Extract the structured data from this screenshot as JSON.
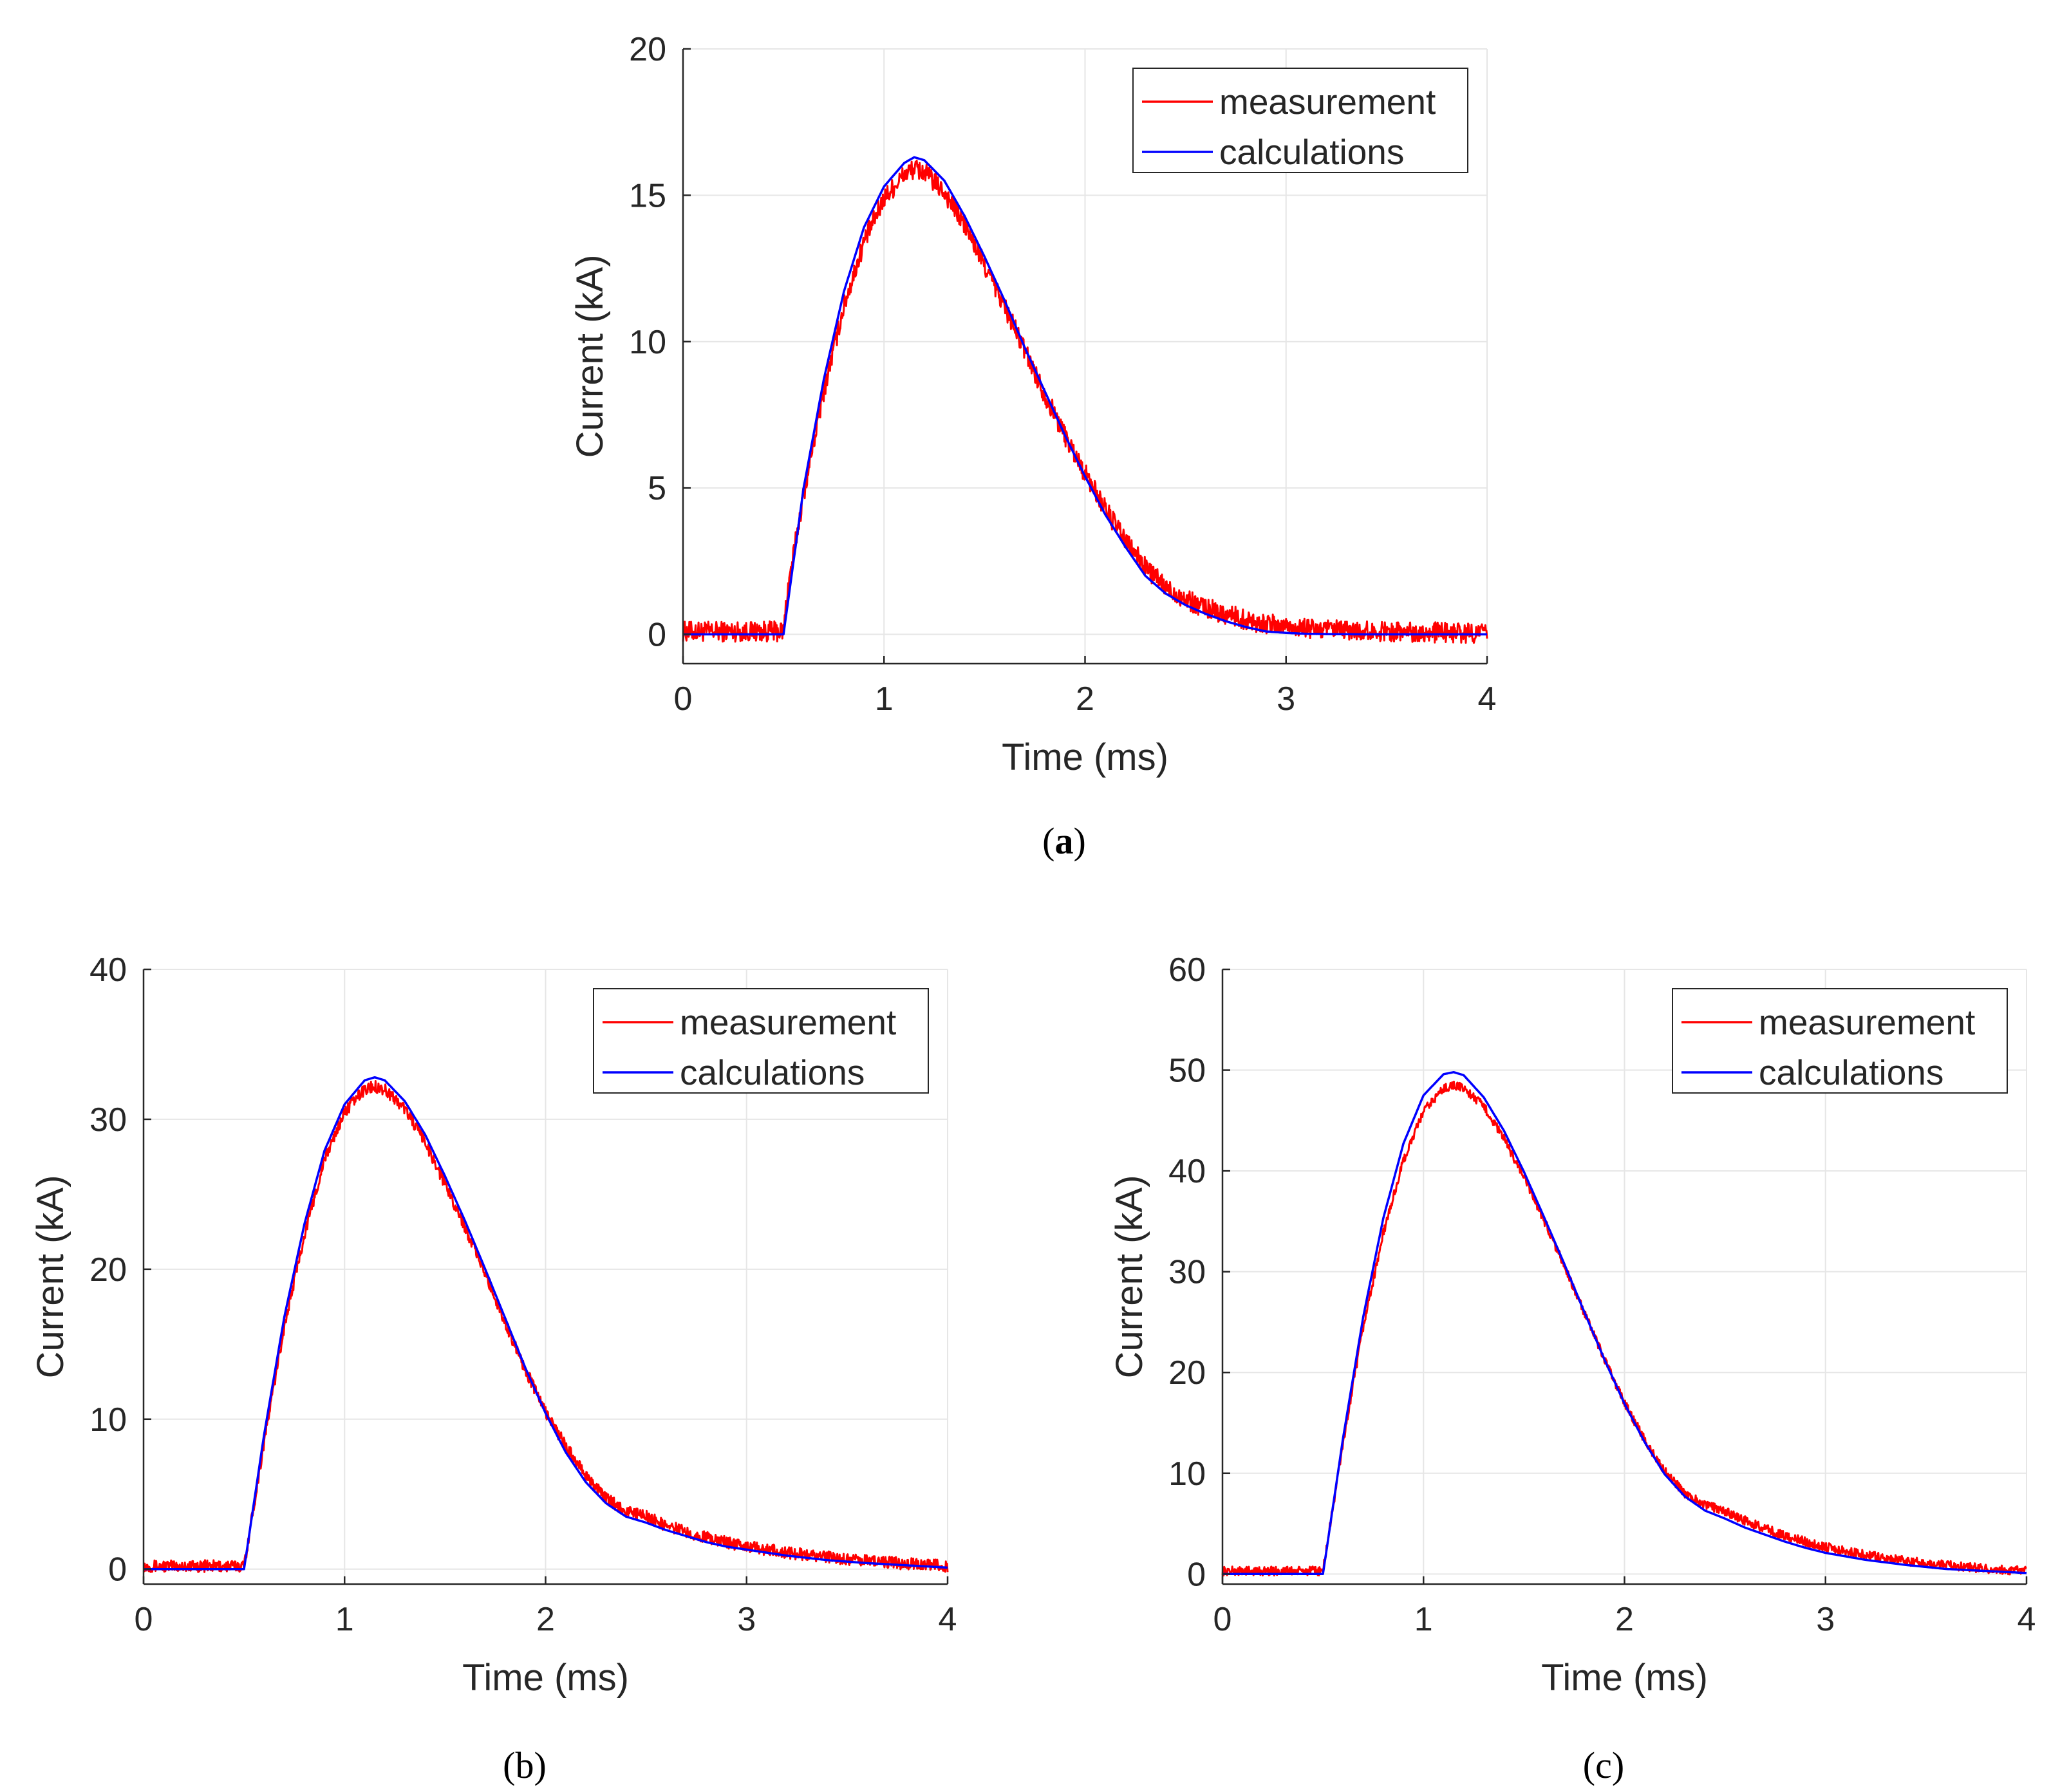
{
  "colors": {
    "measurement": "#ff0000",
    "calculations": "#0000ff",
    "axis": "#262626",
    "grid": "#e6e6e6"
  },
  "chart_data": [
    {
      "id": "a",
      "type": "line",
      "caption_prefix": "(",
      "caption_letter": "a",
      "caption_suffix": ")",
      "xlabel": "Time (ms)",
      "ylabel": "Current (kA)",
      "xlim": [
        0,
        4
      ],
      "ylim": [
        -1,
        20
      ],
      "xticks": [
        0,
        1,
        2,
        3,
        4
      ],
      "yticks": [
        0,
        5,
        10,
        15,
        20
      ],
      "grid": true,
      "legend_position": "top-right",
      "noise_amplitude": 0.35,
      "series": [
        {
          "name": "measurement",
          "color": "#ff0000",
          "x": [
            0,
            0.5,
            0.52,
            0.6,
            0.7,
            0.8,
            0.9,
            1.0,
            1.1,
            1.15,
            1.2,
            1.3,
            1.4,
            1.5,
            1.6,
            1.7,
            1.8,
            1.9,
            2.0,
            2.1,
            2.2,
            2.3,
            2.4,
            2.5,
            2.6,
            2.7,
            2.8,
            2.9,
            3.0,
            3.1,
            3.2,
            3.4,
            3.6,
            3.8,
            4.0
          ],
          "y": [
            0.1,
            0.1,
            1.5,
            4.8,
            8.3,
            11.2,
            13.4,
            14.9,
            15.7,
            15.9,
            15.8,
            15.1,
            14.0,
            12.6,
            11.2,
            9.7,
            8.2,
            6.8,
            5.5,
            4.3,
            3.2,
            2.3,
            1.6,
            1.2,
            0.9,
            0.7,
            0.5,
            0.35,
            0.3,
            0.2,
            0.15,
            0.1,
            0.1,
            0.05,
            0.05
          ]
        },
        {
          "name": "calculations",
          "color": "#0000ff",
          "x": [
            0,
            0.5,
            0.6,
            0.7,
            0.8,
            0.9,
            1.0,
            1.1,
            1.15,
            1.2,
            1.3,
            1.4,
            1.5,
            1.6,
            1.7,
            1.8,
            1.9,
            2.0,
            2.1,
            2.2,
            2.3,
            2.4,
            2.5,
            2.6,
            2.7,
            2.8,
            2.9,
            3.0,
            3.1,
            3.2,
            3.4,
            3.6,
            3.8,
            4.0
          ],
          "y": [
            0,
            0,
            5.0,
            8.7,
            11.7,
            13.9,
            15.3,
            16.1,
            16.3,
            16.2,
            15.5,
            14.3,
            12.9,
            11.4,
            9.8,
            8.3,
            6.8,
            5.4,
            4.1,
            3.0,
            2.0,
            1.4,
            1.0,
            0.7,
            0.45,
            0.25,
            0.1,
            0.05,
            0.02,
            0.01,
            0,
            0,
            0,
            0
          ]
        }
      ]
    },
    {
      "id": "b",
      "type": "line",
      "caption_prefix": "(",
      "caption_letter": "b",
      "caption_suffix": ")",
      "xlabel": "Time (ms)",
      "ylabel": "Current (kA)",
      "xlim": [
        0,
        4
      ],
      "ylim": [
        -1,
        40
      ],
      "xticks": [
        0,
        1,
        2,
        3,
        4
      ],
      "yticks": [
        0,
        10,
        20,
        30,
        40
      ],
      "grid": true,
      "legend_position": "top-right",
      "noise_amplitude": 0.4,
      "series": [
        {
          "name": "measurement",
          "color": "#ff0000",
          "x": [
            0,
            0.5,
            0.6,
            0.7,
            0.8,
            0.9,
            1.0,
            1.1,
            1.15,
            1.2,
            1.3,
            1.4,
            1.5,
            1.6,
            1.7,
            1.8,
            1.9,
            2.0,
            2.1,
            2.2,
            2.3,
            2.4,
            2.5,
            2.6,
            2.7,
            2.8,
            2.9,
            3.0,
            3.2,
            3.4,
            3.6,
            3.8,
            4.0
          ],
          "y": [
            0.2,
            0.2,
            8.5,
            16.2,
            22.3,
            27.3,
            30.5,
            32.0,
            32.2,
            32.0,
            30.7,
            28.5,
            25.7,
            22.8,
            19.7,
            16.4,
            13.3,
            10.5,
            8.2,
            6.2,
            4.7,
            3.9,
            3.5,
            2.9,
            2.5,
            2.1,
            1.8,
            1.5,
            1.1,
            0.8,
            0.55,
            0.35,
            0.2
          ]
        },
        {
          "name": "calculations",
          "color": "#0000ff",
          "x": [
            0,
            0.5,
            0.6,
            0.7,
            0.8,
            0.9,
            1.0,
            1.1,
            1.15,
            1.2,
            1.3,
            1.4,
            1.5,
            1.6,
            1.7,
            1.8,
            1.9,
            2.0,
            2.1,
            2.2,
            2.3,
            2.4,
            2.5,
            2.6,
            2.7,
            2.8,
            2.9,
            3.0,
            3.2,
            3.4,
            3.6,
            3.8,
            4.0
          ],
          "y": [
            0,
            0,
            9.0,
            16.8,
            23.0,
            27.9,
            31.0,
            32.6,
            32.8,
            32.6,
            31.2,
            29.0,
            26.2,
            23.2,
            20.0,
            16.7,
            13.4,
            10.4,
            7.8,
            5.8,
            4.4,
            3.5,
            3.1,
            2.6,
            2.2,
            1.8,
            1.5,
            1.3,
            0.9,
            0.6,
            0.4,
            0.25,
            0.1
          ]
        }
      ]
    },
    {
      "id": "c",
      "type": "line",
      "caption_prefix": "(",
      "caption_letter": "c",
      "caption_suffix": ")",
      "xlabel": "Time (ms)",
      "ylabel": "Current (kA)",
      "xlim": [
        0,
        4
      ],
      "ylim": [
        -1,
        60
      ],
      "xticks": [
        0,
        1,
        2,
        3,
        4
      ],
      "yticks": [
        0,
        10,
        20,
        30,
        40,
        50,
        60
      ],
      "grid": true,
      "legend_position": "top-right",
      "noise_amplitude": 0.45,
      "series": [
        {
          "name": "measurement",
          "color": "#ff0000",
          "x": [
            0,
            0.5,
            0.6,
            0.7,
            0.8,
            0.9,
            1.0,
            1.1,
            1.15,
            1.2,
            1.3,
            1.4,
            1.5,
            1.6,
            1.7,
            1.8,
            1.9,
            2.0,
            2.1,
            2.2,
            2.3,
            2.4,
            2.5,
            2.6,
            2.7,
            2.8,
            2.9,
            3.0,
            3.2,
            3.4,
            3.6,
            3.8,
            4.0
          ],
          "y": [
            0.3,
            0.3,
            13.0,
            24.5,
            33.8,
            41.0,
            45.9,
            48.2,
            48.5,
            48.2,
            46.4,
            43.2,
            39.4,
            35.1,
            30.6,
            25.9,
            21.3,
            17.0,
            13.3,
            10.2,
            8.0,
            6.9,
            6.2,
            5.3,
            4.5,
            3.8,
            3.2,
            2.7,
            1.9,
            1.3,
            0.9,
            0.5,
            0.3
          ]
        },
        {
          "name": "calculations",
          "color": "#0000ff",
          "x": [
            0,
            0.5,
            0.6,
            0.7,
            0.8,
            0.9,
            1.0,
            1.1,
            1.15,
            1.2,
            1.3,
            1.4,
            1.5,
            1.6,
            1.7,
            1.8,
            1.9,
            2.0,
            2.1,
            2.2,
            2.3,
            2.4,
            2.5,
            2.6,
            2.7,
            2.8,
            2.9,
            3.0,
            3.2,
            3.4,
            3.6,
            3.8,
            4.0
          ],
          "y": [
            0,
            0,
            13.5,
            25.5,
            35.3,
            42.7,
            47.5,
            49.6,
            49.8,
            49.5,
            47.3,
            44.0,
            39.9,
            35.4,
            30.8,
            26.0,
            21.3,
            16.9,
            13.1,
            9.9,
            7.7,
            6.3,
            5.5,
            4.6,
            3.9,
            3.2,
            2.6,
            2.1,
            1.4,
            0.9,
            0.5,
            0.3,
            0.1
          ]
        }
      ]
    }
  ]
}
